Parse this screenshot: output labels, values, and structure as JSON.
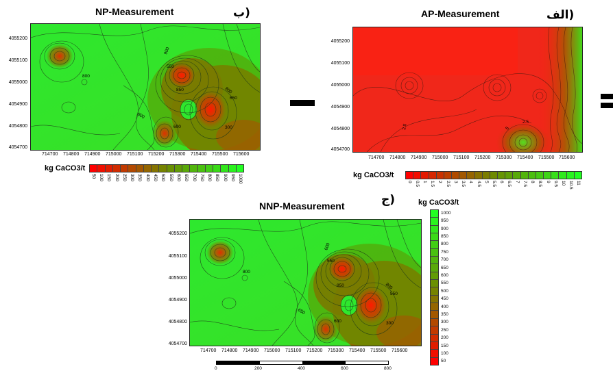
{
  "panels": {
    "np": {
      "title": "NP-Measurement",
      "label": "ب)",
      "yticks": [
        "4055200",
        "4055100",
        "4055000",
        "4054900",
        "4054800",
        "4054700"
      ],
      "xticks": [
        "714700",
        "714800",
        "714900",
        "715000",
        "715100",
        "715200",
        "715300",
        "715400",
        "715500",
        "715600"
      ],
      "contour_labels": [
        "900",
        "550",
        "850",
        "800",
        "650",
        "800",
        "800",
        "300",
        "600"
      ]
    },
    "ap": {
      "title": "AP-Measurement",
      "label": "الف)",
      "yticks": [
        "4055200",
        "4055100",
        "4055000",
        "4054900",
        "4054800",
        "4054700"
      ],
      "xticks": [
        "714700",
        "714800",
        "714900",
        "715000",
        "715100",
        "715200",
        "715300",
        "715400",
        "715500",
        "715600"
      ],
      "contour_labels": [
        "2.5",
        "2.5",
        "5"
      ]
    },
    "nnp": {
      "title": "NNP-Measurement",
      "label": "ج)",
      "yticks": [
        "4055200",
        "4055100",
        "4055000",
        "4054900",
        "4054800",
        "4054700"
      ],
      "xticks": [
        "714700",
        "714800",
        "714900",
        "715000",
        "715100",
        "715200",
        "715300",
        "715400",
        "715500",
        "715600"
      ],
      "contour_labels": [
        "800",
        "550",
        "850",
        "600",
        "550",
        "650",
        "800",
        "300",
        "600"
      ]
    }
  },
  "legends": {
    "np": {
      "unit": "kg CaCO3/t",
      "values": [
        "50",
        "100",
        "150",
        "200",
        "250",
        "300",
        "350",
        "400",
        "450",
        "500",
        "550",
        "600",
        "650",
        "700",
        "750",
        "800",
        "850",
        "900",
        "950",
        "1000"
      ]
    },
    "ap": {
      "unit": "kg CaCO3/t",
      "values": [
        "0",
        "0.5",
        "1",
        "1.5",
        "2",
        "2.5",
        "3",
        "3.5",
        "4",
        "4.5",
        "5",
        "5.5",
        "6",
        "6.5",
        "7",
        "7.5",
        "8",
        "8.5",
        "9",
        "9.5",
        "10",
        "10.5",
        "11"
      ]
    },
    "nnp": {
      "unit": "kg CaCO3/t",
      "values": [
        "1000",
        "950",
        "900",
        "850",
        "800",
        "750",
        "700",
        "650",
        "600",
        "550",
        "500",
        "450",
        "400",
        "350",
        "300",
        "250",
        "200",
        "150",
        "100",
        "50"
      ]
    }
  },
  "operators": {
    "minus": "−",
    "equals": "="
  },
  "scale_bar": {
    "labels": [
      "0",
      "200",
      "400",
      "600",
      "800"
    ]
  },
  "colors": {
    "low": "#ff0000",
    "mid": "#6e8a00",
    "high": "#22ff22"
  }
}
